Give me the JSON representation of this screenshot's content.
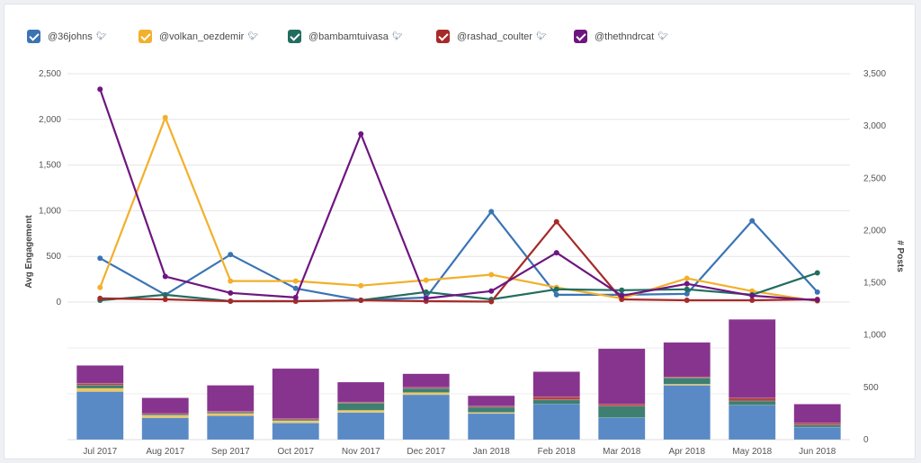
{
  "legend": [
    {
      "label": "@36johns",
      "color": "#3a74b4",
      "icon": "twitter-bird-icon"
    },
    {
      "label": "@volkan_oezdemir",
      "color": "#f2b02b",
      "icon": "twitter-bird-icon"
    },
    {
      "label": "@bambamtuivasa",
      "color": "#236d60",
      "icon": "twitter-bird-icon"
    },
    {
      "label": "@rashad_coulter",
      "color": "#a62a28",
      "icon": "twitter-bird-icon"
    },
    {
      "label": "@thethndrcat",
      "color": "#6e1680",
      "icon": "twitter-bird-icon"
    }
  ],
  "chart_data": {
    "type": "line+stacked-bar",
    "categories": [
      "Jul 2017",
      "Aug 2017",
      "Sep 2017",
      "Oct 2017",
      "Nov 2017",
      "Dec 2017",
      "Jan 2018",
      "Feb 2018",
      "Mar 2018",
      "Apr 2018",
      "May 2018",
      "Jun 2018"
    ],
    "left_axis": {
      "label": "Avg Engagement",
      "ylim": [
        0,
        2500
      ],
      "ticks": [
        "0",
        "500",
        "1,000",
        "1,500",
        "2,000",
        "2,500"
      ]
    },
    "right_axis": {
      "label": "# Posts",
      "ylim": [
        0,
        3500
      ],
      "ticks": [
        "0",
        "500",
        "1,000",
        "1,500",
        "2,000",
        "2,500",
        "3,000",
        "3,500"
      ]
    },
    "line_series": [
      {
        "name": "@36johns",
        "color": "#3a74b4",
        "values": [
          480,
          80,
          520,
          150,
          20,
          50,
          990,
          80,
          80,
          90,
          890,
          110
        ]
      },
      {
        "name": "@volkan_oezdemir",
        "color": "#f2b02b",
        "values": [
          160,
          2020,
          230,
          230,
          180,
          240,
          300,
          160,
          40,
          260,
          120,
          10
        ]
      },
      {
        "name": "@bambamtuivasa",
        "color": "#236d60",
        "values": [
          20,
          80,
          10,
          10,
          20,
          110,
          30,
          140,
          130,
          140,
          80,
          320
        ]
      },
      {
        "name": "@rashad_coulter",
        "color": "#a62a28",
        "values": [
          40,
          30,
          10,
          10,
          20,
          10,
          5,
          880,
          30,
          20,
          20,
          30
        ]
      },
      {
        "name": "@thethndrcat",
        "color": "#6e1680",
        "values": [
          2330,
          280,
          100,
          50,
          1840,
          40,
          120,
          540,
          70,
          200,
          70,
          20
        ]
      }
    ],
    "bar_series": [
      {
        "name": "@36johns",
        "color": "#5a8ac6",
        "values": [
          460,
          210,
          230,
          160,
          260,
          430,
          250,
          340,
          210,
          520,
          330,
          120
        ]
      },
      {
        "name": "@volkan_oezdemir",
        "color": "#f2c552",
        "values": [
          30,
          20,
          20,
          20,
          20,
          20,
          10,
          0,
          0,
          10,
          0,
          0
        ]
      },
      {
        "name": "@bambamtuivasa",
        "color": "#3e7f72",
        "values": [
          30,
          10,
          10,
          10,
          70,
          40,
          50,
          40,
          110,
          60,
          40,
          20
        ]
      },
      {
        "name": "@rashad_coulter",
        "color": "#b04646",
        "values": [
          20,
          10,
          10,
          10,
          10,
          10,
          10,
          30,
          20,
          10,
          30,
          20
        ]
      },
      {
        "name": "@thethndrcat",
        "color": "#87348f",
        "values": [
          170,
          150,
          250,
          480,
          190,
          130,
          100,
          240,
          530,
          330,
          750,
          180
        ]
      }
    ]
  }
}
